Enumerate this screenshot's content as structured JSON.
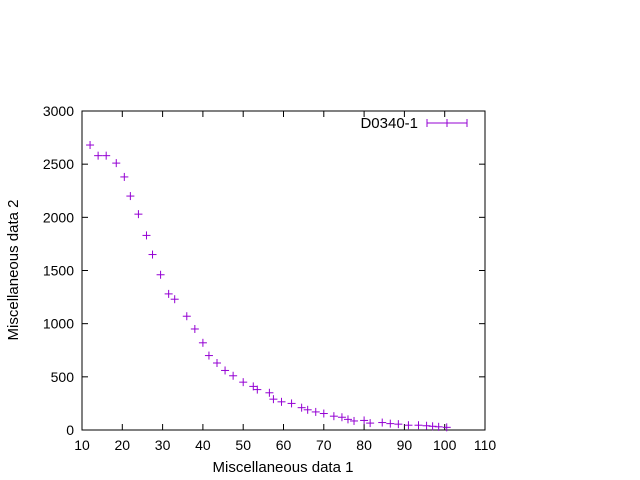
{
  "chart_data": {
    "type": "scatter",
    "title": "",
    "xlabel": "Miscellaneous data 1",
    "ylabel": "Miscellaneous data 2",
    "xlim": [
      10,
      110
    ],
    "ylim": [
      0,
      3000
    ],
    "xticks": [
      "10",
      "20",
      "30",
      "40",
      "50",
      "60",
      "70",
      "80",
      "90",
      "100",
      "110"
    ],
    "yticks": [
      "0",
      "500",
      "1000",
      "1500",
      "2000",
      "2500",
      "3000"
    ],
    "grid": false,
    "legend_position": "top-right",
    "series": [
      {
        "name": "D0340-1",
        "color": "#9400d3",
        "marker": "plus",
        "x": [
          12,
          14,
          16,
          18.5,
          20.5,
          22,
          24,
          26,
          27.5,
          29.5,
          31.5,
          33,
          36,
          38,
          40,
          41.5,
          43.5,
          45.5,
          47.5,
          50,
          52.5,
          53.5,
          56.5,
          57.5,
          59.5,
          62,
          64.5,
          66,
          68,
          70,
          72.5,
          74.5,
          76,
          77.5,
          80,
          81.5,
          84.5,
          86.5,
          88.5,
          91,
          93.5,
          95.5,
          97,
          98.5,
          100.5
        ],
        "y": [
          2680,
          2580,
          2580,
          2510,
          2380,
          2200,
          2030,
          1830,
          1650,
          1460,
          1280,
          1230,
          1070,
          950,
          820,
          700,
          630,
          560,
          510,
          450,
          410,
          380,
          350,
          290,
          265,
          250,
          210,
          190,
          170,
          155,
          130,
          120,
          100,
          85,
          90,
          65,
          70,
          60,
          55,
          45,
          45,
          40,
          35,
          30,
          25
        ]
      }
    ]
  }
}
